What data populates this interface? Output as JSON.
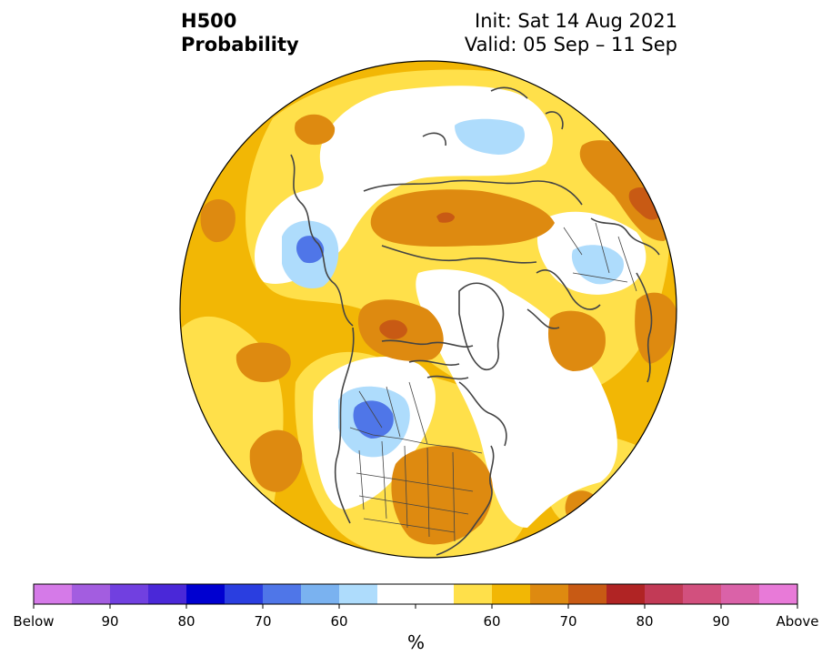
{
  "title": {
    "left_line1": "H500",
    "left_line2": "Probability",
    "init": "Init: Sat 14 Aug 2021",
    "valid": "Valid: 05 Sep – 11 Sep"
  },
  "colorbar": {
    "unit_label": "%",
    "colors": [
      "#d57ae8",
      "#a35de0",
      "#7140e0",
      "#4a28d8",
      "#0000d0",
      "#2a3ee0",
      "#4f76e8",
      "#7ab2f0",
      "#aedcfc",
      "#ffffff",
      "#ffffff",
      "#ffe04a",
      "#f2b705",
      "#de8a10",
      "#c85a14",
      "#b02424",
      "#c23a56",
      "#d2507e",
      "#da62a8",
      "#e87ad8"
    ],
    "tick_labels": [
      "Below",
      "90",
      "80",
      "70",
      "60",
      "60",
      "70",
      "80",
      "90",
      "Above"
    ]
  },
  "map": {
    "projection": "north-polar-stereographic",
    "colors": {
      "background": "#f2b705",
      "light_yellow": "#ffe04a",
      "orange": "#de8a10",
      "dark_orange": "#c85a14",
      "white": "#ffffff",
      "light_blue": "#aedcfc",
      "blue": "#7ab2f0",
      "mid_blue": "#4f76e8",
      "coast": "#444444"
    }
  }
}
